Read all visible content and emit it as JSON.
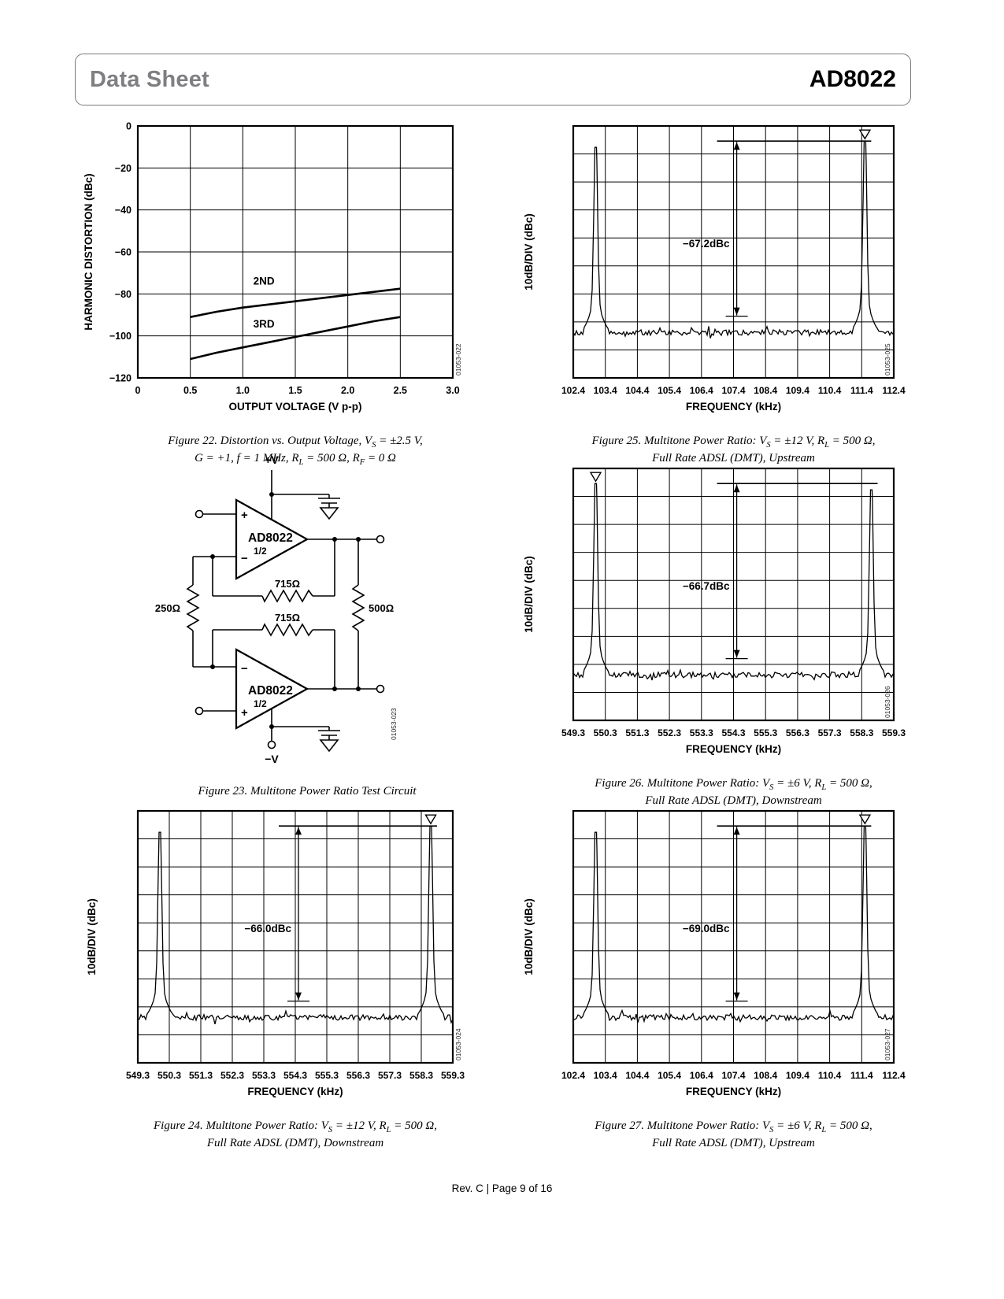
{
  "header": {
    "doc_type": "Data Sheet",
    "part_number": "AD8022"
  },
  "footer": {
    "text": "Rev. C | Page 9 of 16"
  },
  "figures": {
    "fig22": {
      "caption_line1": "Figure 22. Distortion vs. Output Voltage, V~S~ = ±2.5 V,",
      "caption_line2": "G = +1, f = 1 MHz, R~L~ = 500 Ω, R~F~ = 0 Ω",
      "watermark": "01053-022"
    },
    "fig23": {
      "caption_line1": "Figure 23. Multitone Power Ratio Test Circuit",
      "watermark": "01053-023"
    },
    "fig24": {
      "caption_line1": "Figure 24. Multitone Power Ratio: V~S~ = ±12 V, R~L~ = 500 Ω,",
      "caption_line2": "Full Rate ADSL (DMT), Downstream",
      "watermark": "01053-024"
    },
    "fig25": {
      "caption_line1": "Figure 25. Multitone Power Ratio: V~S~ = ±12 V, R~L~ = 500 Ω,",
      "caption_line2": "Full Rate ADSL (DMT), Upstream",
      "watermark": "01053-025"
    },
    "fig26": {
      "caption_line1": "Figure 26. Multitone Power Ratio: V~S~ = ±6 V, R~L~ = 500 Ω,",
      "caption_line2": "Full Rate ADSL (DMT), Downstream",
      "watermark": "01053-026"
    },
    "fig27": {
      "caption_line1": "Figure 27. Multitone Power Ratio: V~S~ = ±6 V, R~L~ = 500 Ω,",
      "caption_line2": "Full Rate ADSL (DMT), Upstream",
      "watermark": "01053-027"
    }
  },
  "circuit": {
    "supply_pos": "+V",
    "supply_neg": "−V",
    "plus": "+",
    "minus": "−",
    "amp_name": "AD8022",
    "amp_half": "1/2",
    "r_feedback": "715Ω",
    "r_gain": "250Ω",
    "r_load": "500Ω"
  },
  "chart_data": [
    {
      "id": "fig22",
      "type": "line",
      "title": "Distortion vs. Output Voltage",
      "xlabel": "OUTPUT VOLTAGE (V p-p)",
      "ylabel": "HARMONIC DISTORTION (dBc)",
      "xlim": [
        0,
        3.0
      ],
      "ylim": [
        -120,
        0
      ],
      "xticks": [
        "0",
        "0.5",
        "1.0",
        "1.5",
        "2.0",
        "2.5",
        "3.0"
      ],
      "xtick_vals": [
        0,
        0.5,
        1.0,
        1.5,
        2.0,
        2.5,
        3.0
      ],
      "yticks": [
        "0",
        "−20",
        "−40",
        "−60",
        "−80",
        "−100",
        "−120"
      ],
      "ytick_vals": [
        0,
        -20,
        -40,
        -60,
        -80,
        -100,
        -120
      ],
      "series": [
        {
          "name": "2ND",
          "x": [
            0.5,
            0.75,
            1.0,
            1.25,
            1.5,
            1.75,
            2.0,
            2.25,
            2.5
          ],
          "y": [
            -91,
            -88.5,
            -86.5,
            -85,
            -83.5,
            -82,
            -80.5,
            -79,
            -77.5
          ],
          "label_x": 1.1,
          "label_y": -75.5
        },
        {
          "name": "3RD",
          "x": [
            0.5,
            0.75,
            1.0,
            1.25,
            1.5,
            1.75,
            2.0,
            2.25,
            2.5
          ],
          "y": [
            -111,
            -108,
            -105.5,
            -103,
            -100.5,
            -98,
            -95.5,
            -93,
            -91
          ],
          "label_x": 1.1,
          "label_y": -96
        }
      ],
      "grid": true,
      "watermark": "01053-022"
    },
    {
      "id": "fig25",
      "type": "spectrum",
      "xlabel": "FREQUENCY (kHz)",
      "ylabel": "10dB/DIV (dBc)",
      "xlim": [
        102.4,
        112.4
      ],
      "xticks": [
        "102.4",
        "103.4",
        "104.4",
        "105.4",
        "106.4",
        "107.4",
        "108.4",
        "109.4",
        "110.4",
        "111.4",
        "112.4"
      ],
      "grid_rows": 9,
      "annotation": "−67.2dBc",
      "peaks_khz": [
        103.1,
        111.5
      ],
      "marker_peak": "right",
      "watermark": "01053-025"
    },
    {
      "id": "fig26",
      "type": "spectrum",
      "xlabel": "FREQUENCY (kHz)",
      "ylabel": "10dB/DIV (dBc)",
      "xlim": [
        549.3,
        559.3
      ],
      "xticks": [
        "549.3",
        "550.3",
        "551.3",
        "552.3",
        "553.3",
        "554.3",
        "555.3",
        "556.3",
        "557.3",
        "558.3",
        "559.3"
      ],
      "grid_rows": 9,
      "annotation": "−66.7dBc",
      "peaks_khz": [
        550.0,
        558.6
      ],
      "marker_peak": "left",
      "watermark": "01053-026"
    },
    {
      "id": "fig24",
      "type": "spectrum",
      "xlabel": "FREQUENCY (kHz)",
      "ylabel": "10dB/DIV (dBc)",
      "xlim": [
        549.3,
        559.3
      ],
      "xticks": [
        "549.3",
        "550.3",
        "551.3",
        "552.3",
        "553.3",
        "554.3",
        "555.3",
        "556.3",
        "557.3",
        "558.3",
        "559.3"
      ],
      "grid_rows": 9,
      "annotation": "−66.0dBc",
      "peaks_khz": [
        550.0,
        558.6
      ],
      "marker_peak": "right",
      "watermark": "01053-024"
    },
    {
      "id": "fig27",
      "type": "spectrum",
      "xlabel": "FREQUENCY (kHz)",
      "ylabel": "10dB/DIV (dBc)",
      "xlim": [
        102.4,
        112.4
      ],
      "xticks": [
        "102.4",
        "103.4",
        "104.4",
        "105.4",
        "106.4",
        "107.4",
        "108.4",
        "109.4",
        "110.4",
        "111.4",
        "112.4"
      ],
      "grid_rows": 9,
      "annotation": "−69.0dBc",
      "peaks_khz": [
        103.1,
        111.5
      ],
      "marker_peak": "right",
      "watermark": "01053-027"
    }
  ]
}
